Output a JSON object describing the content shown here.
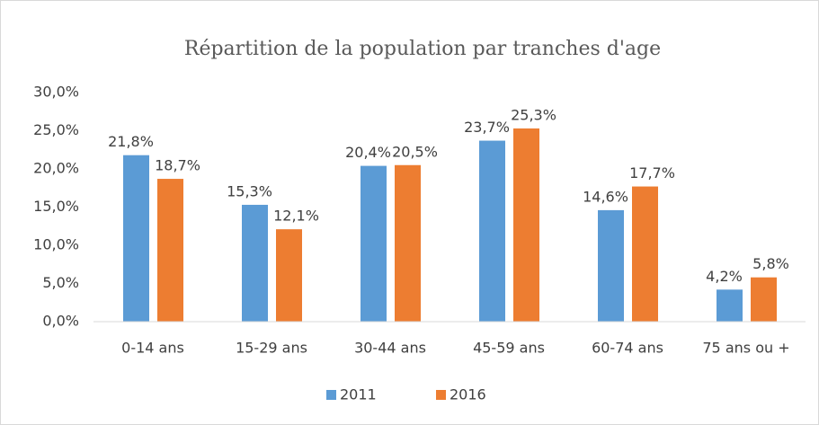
{
  "chart_data": {
    "type": "bar",
    "title": "Répartition de la population par tranches d'age",
    "categories": [
      "0-14 ans",
      "15-29 ans",
      "30-44 ans",
      "45-59 ans",
      "60-74 ans",
      "75 ans ou +"
    ],
    "series": [
      {
        "name": "2011",
        "color": "#5b9bd5",
        "values": [
          21.8,
          15.3,
          20.4,
          23.7,
          14.6,
          4.2
        ],
        "value_labels": [
          "21,8%",
          "15,3%",
          "20,4%",
          "23,7%",
          "14,6%",
          "4,2%"
        ]
      },
      {
        "name": "2016",
        "color": "#ed7d31",
        "values": [
          18.7,
          12.1,
          20.5,
          25.3,
          17.7,
          5.8
        ],
        "value_labels": [
          "18,7%",
          "12,1%",
          "20,5%",
          "25,3%",
          "17,7%",
          "5,8%"
        ]
      }
    ],
    "ylim": [
      0,
      30
    ],
    "yticks": [
      {
        "value": 0,
        "label": "0,0%"
      },
      {
        "value": 5,
        "label": "5,0%"
      },
      {
        "value": 10,
        "label": "10,0%"
      },
      {
        "value": 15,
        "label": "15,0%"
      },
      {
        "value": 20,
        "label": "20,0%"
      },
      {
        "value": 25,
        "label": "25,0%"
      },
      {
        "value": 30,
        "label": "30,0%"
      }
    ],
    "grid": false,
    "legend": "bottom"
  }
}
